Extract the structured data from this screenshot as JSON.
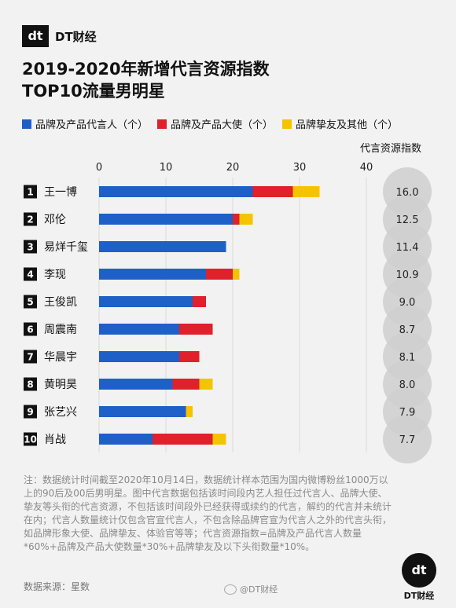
{
  "brand": {
    "logo_mark": "dt",
    "name": "DT财经"
  },
  "title_line1": "2019-2020年新增代言资源指数",
  "title_line2": "TOP10流量男明星",
  "colors": {
    "spokesperson": "#1f5fc8",
    "ambassador": "#e0202a",
    "friend": "#f5c400",
    "bubble": "#cfcfcf"
  },
  "chart_data": {
    "type": "bar",
    "orientation": "horizontal",
    "stacked": true,
    "categories": [
      "王一博",
      "邓伦",
      "易烊千玺",
      "李现",
      "王俊凯",
      "周震南",
      "华晨宇",
      "黄明昊",
      "张艺兴",
      "肖战"
    ],
    "ranks": [
      "1",
      "2",
      "3",
      "4",
      "5",
      "6",
      "7",
      "8",
      "9",
      "10"
    ],
    "series": [
      {
        "name": "品牌及产品代言人（个）",
        "color": "#1f5fc8",
        "values": [
          23,
          20,
          19,
          16,
          14,
          12,
          12,
          11,
          13,
          8
        ]
      },
      {
        "name": "品牌及产品大使（个）",
        "color": "#e0202a",
        "values": [
          6,
          1,
          0,
          4,
          2,
          5,
          3,
          4,
          0,
          9
        ]
      },
      {
        "name": "品牌挚友及其他（个）",
        "color": "#f5c400",
        "values": [
          4,
          2,
          0,
          1,
          0,
          0,
          0,
          2,
          1,
          2
        ]
      }
    ],
    "xlim": [
      0,
      40
    ],
    "xticks": [
      "0",
      "10",
      "20",
      "30",
      "40"
    ],
    "index_title": "代言资源指数",
    "index_values": [
      "16.0",
      "12.5",
      "11.4",
      "10.9",
      "9.0",
      "8.7",
      "8.1",
      "8.0",
      "7.9",
      "7.7"
    ]
  },
  "note": "注：数据统计时间截至2020年10月14日，数据统计样本范围为国内微博粉丝1000万以上的90后及00后男明星。图中代言数据包括该时间段内艺人担任过代言人、品牌大使、挚友等头衔的代言资源，不包括该时间段外已经获得或续约的代言，解约的代言并未统计在内；代言人数量统计仅包含官宣代言人，不包含除品牌官宣为代言人之外的代言头衔，如品牌形象大使、品牌挚友、体验官等等；代言资源指数=品牌及产品代言人数量*60%+品牌及产品大使数量*30%+品牌挚友及以下头衔数量*10%。",
  "source": "数据来源：星数",
  "watermark": "@DT财经"
}
